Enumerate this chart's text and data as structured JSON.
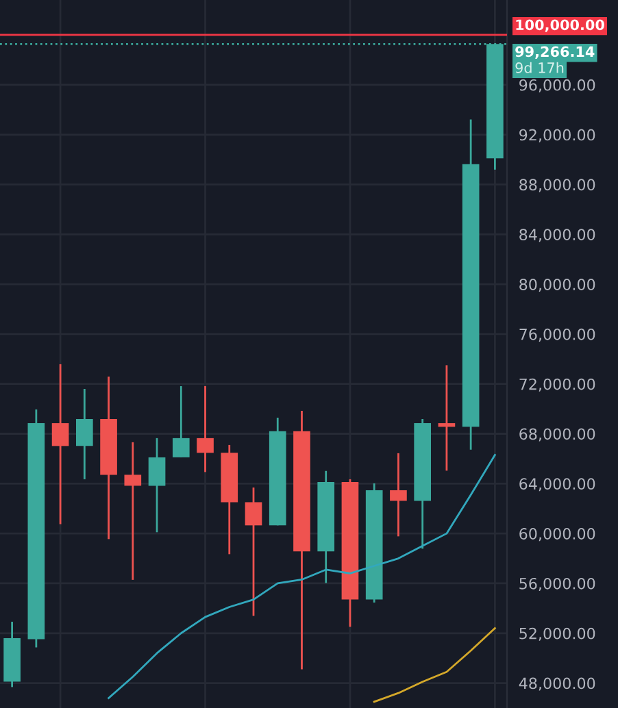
{
  "chart_data": {
    "type": "candlestick",
    "categories": [
      null,
      null,
      null,
      null,
      null,
      null,
      null,
      null,
      null,
      null,
      null,
      null,
      null,
      null,
      null,
      null,
      null,
      null,
      null,
      null,
      null
    ],
    "ohlc": [
      [
        48120,
        52920,
        47680,
        51600
      ],
      [
        51520,
        69950,
        50860,
        68850
      ],
      [
        68850,
        73580,
        60750,
        67020
      ],
      [
        67020,
        71600,
        64350,
        69180
      ],
      [
        69180,
        72590,
        59550,
        64710
      ],
      [
        64710,
        67320,
        56280,
        63830
      ],
      [
        63830,
        67650,
        60100,
        66110
      ],
      [
        66110,
        71820,
        66110,
        67650
      ],
      [
        67650,
        71820,
        64930,
        66470
      ],
      [
        66470,
        67100,
        58340,
        62510
      ],
      [
        62510,
        63690,
        53390,
        60650
      ],
      [
        60650,
        69290,
        60650,
        68200
      ],
      [
        68200,
        69840,
        49110,
        58560
      ],
      [
        58560,
        65020,
        56030,
        64130
      ],
      [
        64130,
        64350,
        52510,
        54710
      ],
      [
        54710,
        64020,
        54460,
        63470
      ],
      [
        63470,
        66440,
        59770,
        62620
      ],
      [
        62620,
        69180,
        58780,
        68850
      ],
      [
        68850,
        73500,
        65040,
        68560
      ],
      [
        68560,
        93220,
        66730,
        89630
      ],
      [
        90100,
        99300,
        89190,
        99266.14
      ]
    ],
    "colors": [
      "#3ba99c",
      "#3ba99c",
      "#ef5350",
      "#3ba99c",
      "#ef5350",
      "#ef5350",
      "#3ba99c",
      "#3ba99c",
      "#ef5350",
      "#ef5350",
      "#ef5350",
      "#3ba99c",
      "#ef5350",
      "#3ba99c",
      "#ef5350",
      "#3ba99c",
      "#ef5350",
      "#3ba99c",
      "#ef5350",
      "#3ba99c",
      "#3ba99c"
    ],
    "series": [
      {
        "type": "line",
        "color": "#32a8bd",
        "values": [
          null,
          null,
          null,
          null,
          46800,
          48500,
          50400,
          52000,
          53300,
          54100,
          54700,
          56000,
          56300,
          57100,
          56800,
          57400,
          58000,
          59000,
          60000,
          63100,
          66300
        ]
      },
      {
        "type": "line",
        "color": "#d4a82a",
        "values": [
          null,
          null,
          null,
          null,
          null,
          null,
          null,
          null,
          null,
          null,
          null,
          null,
          null,
          null,
          null,
          46500,
          47200,
          48100,
          48900,
          50600,
          52400
        ]
      }
    ],
    "ylim": [
      46000,
      102800
    ],
    "yticks": [
      {
        "value": 48000,
        "label": "48,000.00"
      },
      {
        "value": 52000,
        "label": "52,000.00"
      },
      {
        "value": 56000,
        "label": "56,000.00"
      },
      {
        "value": 60000,
        "label": "60,000.00"
      },
      {
        "value": 64000,
        "label": "64,000.00"
      },
      {
        "value": 68000,
        "label": "68,000.00"
      },
      {
        "value": 72000,
        "label": "72,000.00"
      },
      {
        "value": 76000,
        "label": "76,000.00"
      },
      {
        "value": 80000,
        "label": "80,000.00"
      },
      {
        "value": 84000,
        "label": "84,000.00"
      },
      {
        "value": 88000,
        "label": "88,000.00"
      },
      {
        "value": 92000,
        "label": "92,000.00"
      },
      {
        "value": 96000,
        "label": "96,000.00"
      }
    ],
    "grid": true,
    "ref_lines": [
      {
        "axis": "y",
        "value": 100000,
        "label": "100,000.00",
        "color": "#f23645",
        "line_style": "solid"
      },
      {
        "axis": "y",
        "value": 99266.14,
        "label": "99,266.14",
        "color": "#3ba99c",
        "line_style": "dotted"
      }
    ],
    "annotations": [
      "9d 17h"
    ]
  }
}
